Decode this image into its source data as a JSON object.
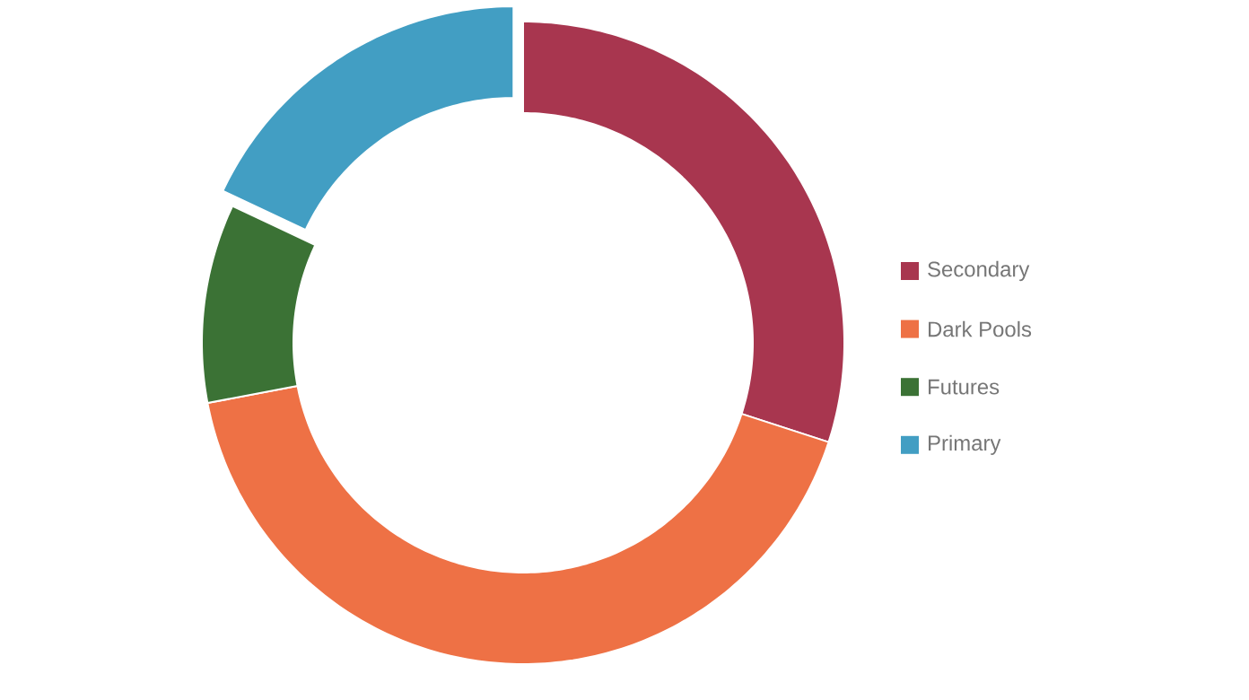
{
  "chart_data": {
    "type": "donut",
    "categories": [
      "Secondary",
      "Dark Pools",
      "Futures",
      "Primary"
    ],
    "values": [
      30,
      42,
      10,
      18
    ],
    "colors": [
      "#a8364f",
      "#ee7145",
      "#3b7235",
      "#429ec3"
    ],
    "legend": "right"
  }
}
